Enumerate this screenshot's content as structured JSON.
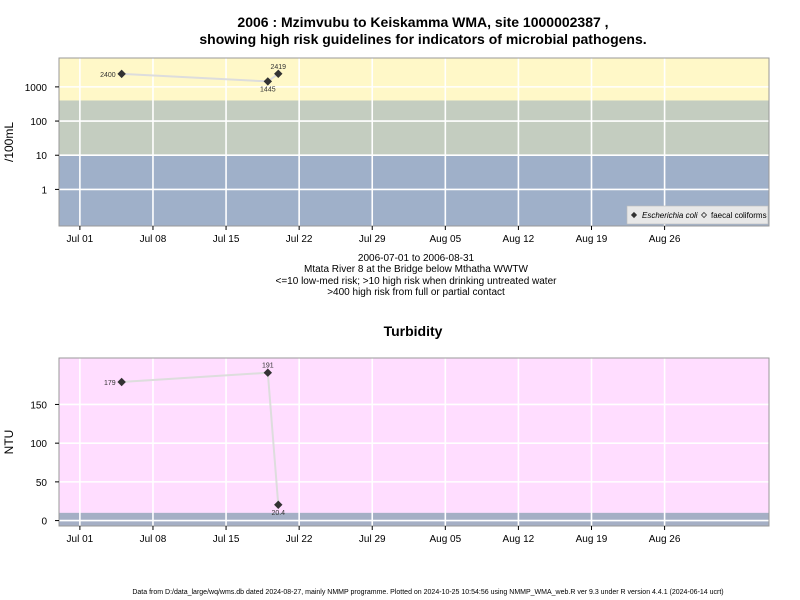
{
  "title_line1": "2006 : Mzimvubu to Keiskamma WMA, site 1000002387 ,",
  "title_line2": "showing high risk guidelines for indicators of microbial pathogens.",
  "subtitle": [
    "2006-07-01 to 2006-08-31",
    "Mtata River 8 at the Bridge below Mthatha WWTW",
    "<=10 low-med risk; >10 high risk when drinking untreated water",
    ">400 high risk from full or partial contact"
  ],
  "footer": "Data from D:/data_large/wq/wms.db dated 2024-08-27, mainly NMMP programme. Plotted on 2024-10-25 10:54:56 using NMMP_WMA_web.R ver 9.3 under R version 4.4.1 (2024-06-14 ucrt)",
  "colors": {
    "band_high": "#fff8c8",
    "band_mid": "#c4cdc0",
    "band_low": "#9fb0c9",
    "turbidity_bg": "#ffddff",
    "turbidity_band": "#a5afc5",
    "line": "#dddddd",
    "point": "#333333"
  },
  "chart_data": [
    {
      "type": "scatter",
      "title": "",
      "ylabel": "/100mL",
      "y_scale": "log",
      "yticks": [
        1,
        10,
        100,
        1000
      ],
      "xticks": [
        "Jul 01",
        "Jul 08",
        "Jul 15",
        "Jul 22",
        "Jul 29",
        "Aug 05",
        "Aug 12",
        "Aug 19",
        "Aug 26"
      ],
      "xtick_dates": [
        "2006-07-01",
        "2006-07-08",
        "2006-07-15",
        "2006-07-22",
        "2006-07-29",
        "2006-08-05",
        "2006-08-12",
        "2006-08-19",
        "2006-08-26"
      ],
      "xlim": [
        "2006-06-29",
        "2006-09-05"
      ],
      "bands": [
        {
          "from": 400,
          "to": null,
          "color": "band_high"
        },
        {
          "from": 10,
          "to": 400,
          "color": "band_mid"
        },
        {
          "from": null,
          "to": 10,
          "color": "band_low"
        }
      ],
      "legend_position": "bottom-right",
      "series": [
        {
          "name": "Escherichia coli",
          "marker": "filled-diamond",
          "points": [
            {
              "x": "2006-07-05",
              "y": 2400,
              "label": "2400"
            },
            {
              "x": "2006-07-19",
              "y": 1445,
              "label": "1445"
            },
            {
              "x": "2006-07-20",
              "y": 2419,
              "label": "2419"
            }
          ]
        },
        {
          "name": "faecal coliforms",
          "marker": "open-diamond",
          "points": []
        }
      ]
    },
    {
      "type": "scatter",
      "title": "Turbidity",
      "ylabel": "NTU",
      "yticks": [
        0,
        50,
        100,
        150
      ],
      "ylim": [
        -7,
        210
      ],
      "xticks": [
        "Jul 01",
        "Jul 08",
        "Jul 15",
        "Jul 22",
        "Jul 29",
        "Aug 05",
        "Aug 12",
        "Aug 19",
        "Aug 26"
      ],
      "xtick_dates": [
        "2006-07-01",
        "2006-07-08",
        "2006-07-15",
        "2006-07-22",
        "2006-07-29",
        "2006-08-05",
        "2006-08-12",
        "2006-08-19",
        "2006-08-26"
      ],
      "xlim": [
        "2006-06-29",
        "2006-09-05"
      ],
      "bands": [
        {
          "from": null,
          "to": 10,
          "color": "turbidity_band"
        }
      ],
      "series": [
        {
          "name": "",
          "marker": "filled-diamond",
          "points": [
            {
              "x": "2006-07-05",
              "y": 179,
              "label": "179"
            },
            {
              "x": "2006-07-19",
              "y": 191,
              "label": "191"
            },
            {
              "x": "2006-07-20",
              "y": 20.4,
              "label": "20.4"
            }
          ]
        }
      ]
    }
  ]
}
